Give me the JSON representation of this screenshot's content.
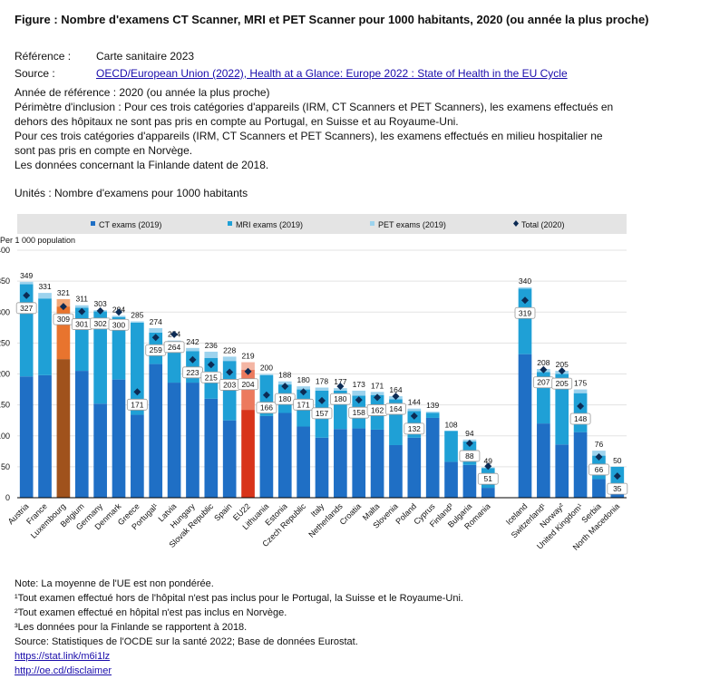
{
  "header": {
    "title": "Figure : Nombre d'examens CT Scanner, MRI et PET Scanner pour 1000 habitants, 2020 (ou année la plus proche)",
    "reference_label": "Référence :",
    "reference_value": "Carte sanitaire 2023",
    "source_label": "Source :",
    "source_link": "OECD/European Union (2022), Health at a Glance: Europe 2022 : State of Health in the EU Cycle",
    "lines": [
      "Année de référence : 2020 (ou année la plus proche)",
      "Périmètre d'inclusion : Pour ces trois catégories d'appareils (IRM, CT Scanners et PET Scanners), les examens effectués en",
      "dehors des hôpitaux ne sont pas pris en compte au Portugal, en Suisse et au Royaume-Uni.",
      "Pour ces trois catégories d'appareils (IRM, CT Scanners et PET Scanners), les examens effectués en milieu hospitalier ne",
      "sont pas pris en compte en Norvège.",
      "Les données concernant la Finlande datent de 2018."
    ],
    "units": "Unités : Nombre d'examens pour 1000 habitants"
  },
  "notes": {
    "lines": [
      "Note: La moyenne de l'UE est non pondérée.",
      "¹Tout examen effectué hors de l'hôpital n'est pas inclus pour le Portugal, la Suisse et le Royaume-Uni.",
      "²Tout examen effectué en hôpital n'est pas inclus en Norvège.",
      "³Les données pour la Finlande se rapportent à 2018.",
      "Source: Statistiques de l'OCDE sur la santé 2022; Base de données Eurostat."
    ],
    "link1": "https://stat.link/m6i1lz",
    "link2": "http://oe.cd/disclaimer"
  },
  "colors": {
    "ct": "#1f6fc5",
    "mri": "#1fa0d6",
    "pet": "#9dd3ee",
    "total_marker": "#0c2b54",
    "lux_ct": "#a0521c",
    "lux_mri": "#e8742e",
    "lux_pet": "#f3a878",
    "eu_ct": "#d8341a",
    "eu_mri": "#ec7a5e",
    "eu_pet": "#f4b6a4"
  },
  "chart_data": {
    "type": "bar",
    "stacked": true,
    "ylabel": "Per 1 000 population",
    "ylim": [
      0,
      400
    ],
    "yticks": [
      "0",
      "50",
      "100",
      "150",
      "200",
      "250",
      "300",
      "350",
      "400"
    ],
    "legend": [
      "CT exams (2019)",
      "MRI exams (2019)",
      "PET exams (2019)",
      "Total (2020)"
    ],
    "legend_position": "top",
    "categories": [
      "Austria",
      "France",
      "Luxembourg",
      "Belgium",
      "Germany",
      "Denmark",
      "Greece",
      "Portugal¹",
      "Latvia",
      "Hungary",
      "Slovak Republic",
      "Spain",
      "EU22",
      "Lithuania",
      "Estonia",
      "Czech Republic",
      "Italy",
      "Netherlands",
      "Croatia",
      "Malta",
      "Slovenia",
      "Poland",
      "Cyprus",
      "Finland³",
      "Bulgaria",
      "Romania",
      "",
      "Iceland",
      "Switzerland¹",
      "Norway²",
      "United Kingdom¹",
      "Serbia",
      "North Macedonia"
    ],
    "series": [
      {
        "name": "CT exams (2019)",
        "values": [
          196,
          198,
          224,
          205,
          152,
          191,
          134,
          216,
          186,
          186,
          160,
          125,
          142,
          132,
          137,
          115,
          97,
          111,
          112,
          110,
          85,
          97,
          129,
          58,
          53,
          16,
          null,
          232,
          120,
          86,
          106,
          30,
          23
        ]
      },
      {
        "name": "MRI exams (2019)",
        "values": [
          149,
          124,
          85,
          102,
          149,
          101,
          149,
          51,
          62,
          51,
          66,
          96,
          65,
          66,
          46,
          60,
          76,
          62,
          53,
          56,
          74,
          43,
          8,
          50,
          38,
          32,
          null,
          106,
          83,
          114,
          63,
          38,
          27
        ]
      },
      {
        "name": "PET exams (2019)",
        "values": [
          4,
          9,
          12,
          4,
          2,
          2,
          2,
          7,
          6,
          5,
          10,
          7,
          12,
          2,
          5,
          5,
          5,
          4,
          8,
          5,
          5,
          4,
          2,
          null,
          3,
          1,
          null,
          2,
          5,
          5,
          6,
          8,
          null
        ]
      }
    ],
    "bar_totals": [
      "349",
      "331",
      "321",
      "311",
      "303",
      "294",
      "285",
      "274",
      "254",
      "242",
      "236",
      "228",
      "219",
      "200",
      "188",
      "180",
      "178",
      "177",
      "173",
      "171",
      "164",
      "144",
      "139",
      "108",
      "94",
      "49",
      "",
      "340",
      "208",
      "205",
      "175",
      "76",
      "50"
    ],
    "total_2020": [
      327,
      null,
      309,
      301,
      302,
      300,
      171,
      259,
      264,
      223,
      215,
      203,
      204,
      166,
      180,
      171,
      157,
      180,
      158,
      162,
      164,
      132,
      null,
      null,
      88,
      51,
      null,
      319,
      207,
      205,
      148,
      66,
      35
    ],
    "total_2020_labels": [
      "327",
      "",
      "309",
      "301",
      "302",
      "300",
      "171",
      "259",
      "264",
      "223",
      "215",
      "203",
      "204",
      "166",
      "180",
      "171",
      "157",
      "180",
      "158",
      "162",
      "164",
      "132",
      "",
      "",
      "88",
      "51",
      "",
      "319",
      "207",
      "205",
      "148",
      "66",
      "35"
    ],
    "highlight": {
      "Luxembourg": "lux",
      "EU22": "eu"
    }
  }
}
